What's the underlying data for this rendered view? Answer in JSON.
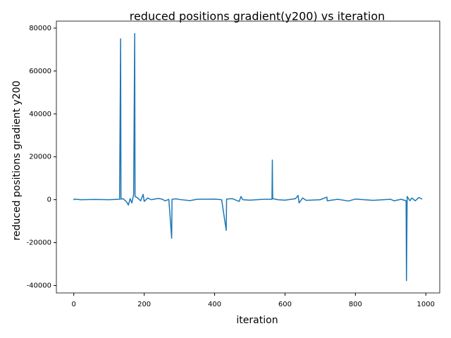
{
  "chart_data": {
    "type": "line",
    "title": "reduced positions gradient(y200) vs iteration",
    "x_label": "iteration",
    "y_label": "reduced positions gradient y200",
    "xlim": [
      -49.5,
      1039.5
    ],
    "ylim": [
      -43460,
      83260
    ],
    "xticks": [
      0,
      200,
      400,
      600,
      800,
      1000
    ],
    "yticks": [
      -40000,
      -20000,
      0,
      20000,
      40000,
      60000,
      80000
    ],
    "grid": false,
    "series": [
      {
        "color": "#1f77b4",
        "x": [
          0,
          1,
          20,
          60,
          100,
          130,
          133,
          134,
          140,
          150,
          155,
          160,
          165,
          170,
          173,
          174,
          180,
          190,
          197,
          200,
          210,
          220,
          240,
          250,
          260,
          270,
          278,
          279,
          290,
          300,
          330,
          350,
          400,
          420,
          433,
          434,
          450,
          470,
          475,
          480,
          500,
          540,
          563,
          564,
          565,
          580,
          600,
          630,
          637,
          640,
          650,
          660,
          700,
          719,
          720,
          750,
          780,
          800,
          850,
          900,
          910,
          930,
          944,
          945,
          947,
          955,
          960,
          970,
          980,
          990
        ],
        "values": [
          -200,
          300,
          0,
          100,
          0,
          200,
          75000,
          200,
          500,
          -1000,
          -2500,
          500,
          -1500,
          2500,
          77500,
          1500,
          1000,
          -500,
          2500,
          -800,
          800,
          0,
          600,
          300,
          -500,
          200,
          -18000,
          200,
          400,
          100,
          -400,
          200,
          300,
          0,
          -14300,
          300,
          500,
          -800,
          1500,
          0,
          -200,
          200,
          200,
          18500,
          500,
          0,
          -200,
          500,
          2000,
          -1500,
          800,
          -300,
          0,
          1200,
          -500,
          200,
          -600,
          300,
          -300,
          200,
          -500,
          200,
          -500,
          -37700,
          1500,
          -500,
          800,
          -500,
          1000,
          300
        ]
      }
    ]
  }
}
